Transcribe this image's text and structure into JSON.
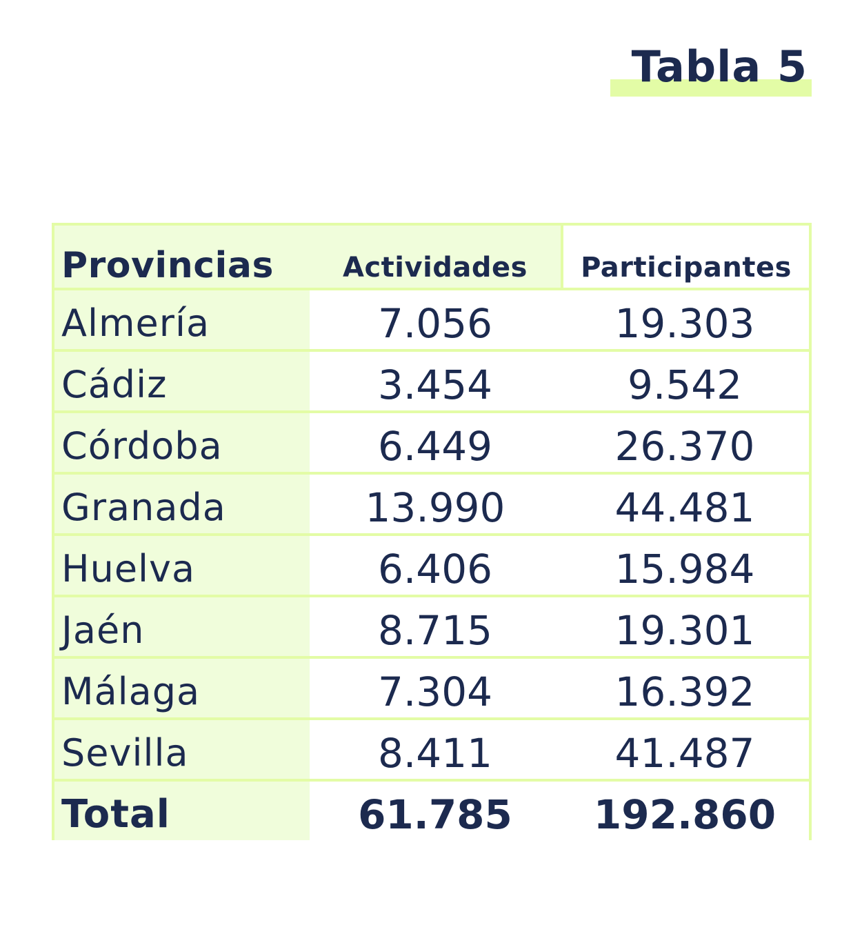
{
  "title": "Tabla 5",
  "table": {
    "headers": [
      "Provincias",
      "Actividades",
      "Participantes"
    ],
    "rows": [
      [
        "Almería",
        "7.056",
        "19.303"
      ],
      [
        "Cádiz",
        "3.454",
        "9.542"
      ],
      [
        "Córdoba",
        "6.449",
        "26.370"
      ],
      [
        "Granada",
        "13.990",
        "44.481"
      ],
      [
        "Huelva",
        "6.406",
        "15.984"
      ],
      [
        "Jaén",
        "8.715",
        "19.301"
      ],
      [
        "Málaga",
        "7.304",
        "16.392"
      ],
      [
        "Sevilla",
        "8.411",
        "41.487"
      ]
    ],
    "total": [
      "Total",
      "61.785",
      "192.860"
    ]
  },
  "colors": {
    "text": "#1c2a4f",
    "accent": "#e3fca6",
    "cell_tint": "#f0fddb"
  }
}
